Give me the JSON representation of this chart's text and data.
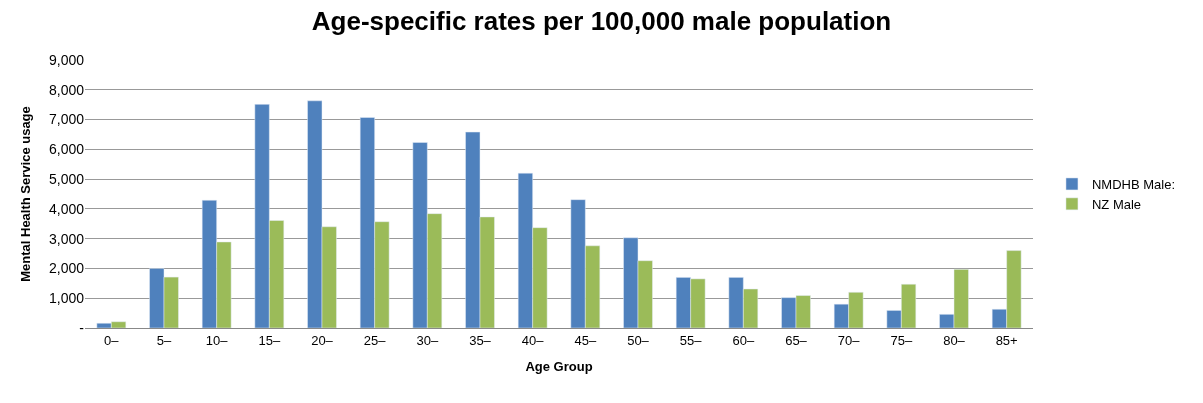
{
  "chart_data": {
    "type": "bar",
    "title": "Age-specific rates per 100,000 male population",
    "xlabel": "Age Group",
    "ylabel": "Mental Health Service usage",
    "categories": [
      "0–",
      "5–",
      "10–",
      "15–",
      "20–",
      "25–",
      "30–",
      "35–",
      "40–",
      "45–",
      "50–",
      "55–",
      "60–",
      "65–",
      "70–",
      "75–",
      "80–",
      "85+"
    ],
    "series": [
      {
        "name": "NMDHB Male:",
        "color": "#4f81bd",
        "values": [
          160,
          2000,
          4290,
          7510,
          7630,
          7070,
          6230,
          6580,
          5200,
          4310,
          3030,
          1700,
          1700,
          1020,
          800,
          590,
          460,
          630
        ]
      },
      {
        "name": "NZ Male",
        "color": "#9bbb59",
        "values": [
          210,
          1710,
          2890,
          3610,
          3400,
          3570,
          3840,
          3730,
          3370,
          2760,
          2260,
          1650,
          1310,
          1090,
          1200,
          1470,
          1970,
          2600
        ]
      }
    ],
    "ylim": [
      0,
      9000
    ],
    "yticks": [
      {
        "value": 0,
        "label": "-"
      },
      {
        "value": 1000,
        "label": "1,000"
      },
      {
        "value": 2000,
        "label": "2,000"
      },
      {
        "value": 3000,
        "label": "3,000"
      },
      {
        "value": 4000,
        "label": "4,000"
      },
      {
        "value": 5000,
        "label": "5,000"
      },
      {
        "value": 6000,
        "label": "6,000"
      },
      {
        "value": 7000,
        "label": "7,000"
      },
      {
        "value": 8000,
        "label": "8,000"
      },
      {
        "value": 9000,
        "label": "9,000"
      }
    ],
    "grid": "y",
    "legend": "right"
  }
}
